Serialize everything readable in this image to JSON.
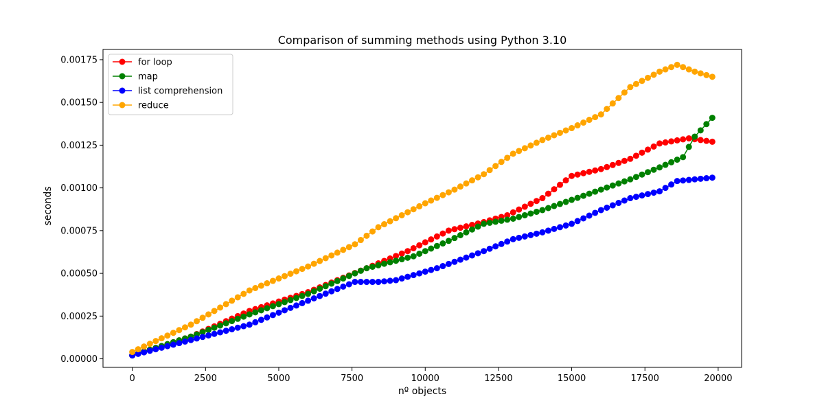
{
  "chart_data": {
    "type": "line",
    "title": "Comparison of summing methods using Python 3.10",
    "xlabel": "nº objects",
    "ylabel": "seconds",
    "xlim": [
      -1000,
      20800
    ],
    "ylim": [
      -5e-05,
      0.00181
    ],
    "xticks": [
      0,
      2500,
      5000,
      7500,
      10000,
      12500,
      15000,
      17500,
      20000
    ],
    "yticks": [
      0,
      0.00025,
      0.0005,
      0.00075,
      0.001,
      0.00125,
      0.0015,
      0.00175
    ],
    "xtick_labels": [
      "0",
      "2500",
      "5000",
      "7500",
      "10000",
      "12500",
      "15000",
      "17500",
      "20000"
    ],
    "ytick_labels": [
      "0.00000",
      "0.00025",
      "0.00050",
      "0.00075",
      "0.00100",
      "0.00125",
      "0.00150",
      "0.00175"
    ],
    "grid": false,
    "legend_position": "top-left",
    "x": {
      "start": 0,
      "step": 200,
      "count": 100
    },
    "series": [
      {
        "name": "for loop",
        "color": "#ff0000",
        "points": [
          [
            0,
            2e-05
          ],
          [
            2000,
            0.00013
          ],
          [
            4000,
            0.00028
          ],
          [
            6000,
            0.00039
          ],
          [
            8000,
            0.00053
          ],
          [
            9400,
            0.00063
          ],
          [
            10800,
            0.00075
          ],
          [
            12000,
            0.0008
          ],
          [
            12800,
            0.00084
          ],
          [
            14000,
            0.00094
          ],
          [
            15000,
            0.00107
          ],
          [
            16000,
            0.00111
          ],
          [
            17000,
            0.00117
          ],
          [
            18000,
            0.00126
          ],
          [
            19000,
            0.00129
          ],
          [
            19800,
            0.00127
          ]
        ]
      },
      {
        "name": "map",
        "color": "#008000",
        "points": [
          [
            0,
            2e-05
          ],
          [
            2000,
            0.00013
          ],
          [
            4000,
            0.00026
          ],
          [
            6000,
            0.00038
          ],
          [
            8000,
            0.00053
          ],
          [
            9600,
            0.0006
          ],
          [
            10800,
            0.00069
          ],
          [
            12000,
            0.00079
          ],
          [
            13000,
            0.00082
          ],
          [
            14000,
            0.00087
          ],
          [
            15000,
            0.00093
          ],
          [
            16000,
            0.00099
          ],
          [
            17000,
            0.00105
          ],
          [
            18000,
            0.00112
          ],
          [
            18800,
            0.00118
          ],
          [
            19200,
            0.0013
          ],
          [
            19800,
            0.00141
          ]
        ]
      },
      {
        "name": "list comprehension",
        "color": "#0000ff",
        "points": [
          [
            0,
            2e-05
          ],
          [
            2000,
            0.00011
          ],
          [
            4000,
            0.0002
          ],
          [
            6000,
            0.00034
          ],
          [
            7600,
            0.00045
          ],
          [
            8400,
            0.00045
          ],
          [
            9000,
            0.00046
          ],
          [
            9600,
            0.00049
          ],
          [
            10400,
            0.00053
          ],
          [
            12000,
            0.00063
          ],
          [
            13000,
            0.0007
          ],
          [
            14000,
            0.00074
          ],
          [
            15000,
            0.00079
          ],
          [
            16000,
            0.00087
          ],
          [
            17000,
            0.00094
          ],
          [
            18000,
            0.00098
          ],
          [
            18600,
            0.00104
          ],
          [
            19800,
            0.00106
          ]
        ]
      },
      {
        "name": "reduce",
        "color": "#ffa500",
        "points": [
          [
            0,
            4e-05
          ],
          [
            2000,
            0.0002
          ],
          [
            4000,
            0.0004
          ],
          [
            6000,
            0.00054
          ],
          [
            7600,
            0.00067
          ],
          [
            8400,
            0.00077
          ],
          [
            10000,
            0.00091
          ],
          [
            11000,
            0.00099
          ],
          [
            12000,
            0.00108
          ],
          [
            13000,
            0.0012
          ],
          [
            14000,
            0.00128
          ],
          [
            15000,
            0.00135
          ],
          [
            16000,
            0.00143
          ],
          [
            17000,
            0.00159
          ],
          [
            18000,
            0.00168
          ],
          [
            18600,
            0.00172
          ],
          [
            19200,
            0.00168
          ],
          [
            19800,
            0.00165
          ]
        ]
      }
    ]
  }
}
